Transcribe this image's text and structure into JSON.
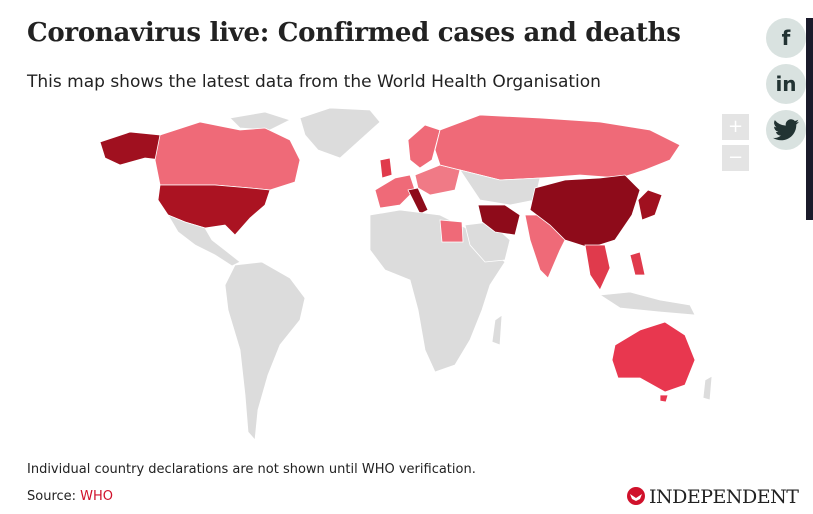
{
  "header": {
    "title": "Coronavirus live: Confirmed cases and deaths",
    "subtitle": "This map shows the latest data from the World Health Organisation"
  },
  "map_controls": {
    "zoom_in": "+",
    "zoom_out": "−"
  },
  "social": {
    "facebook": "f",
    "linkedin": "in"
  },
  "footer": {
    "note": "Individual country declarations are not shown until WHO verification.",
    "source_label": "Source:",
    "source_link": "WHO",
    "logo": "INDEPENDENT"
  }
}
